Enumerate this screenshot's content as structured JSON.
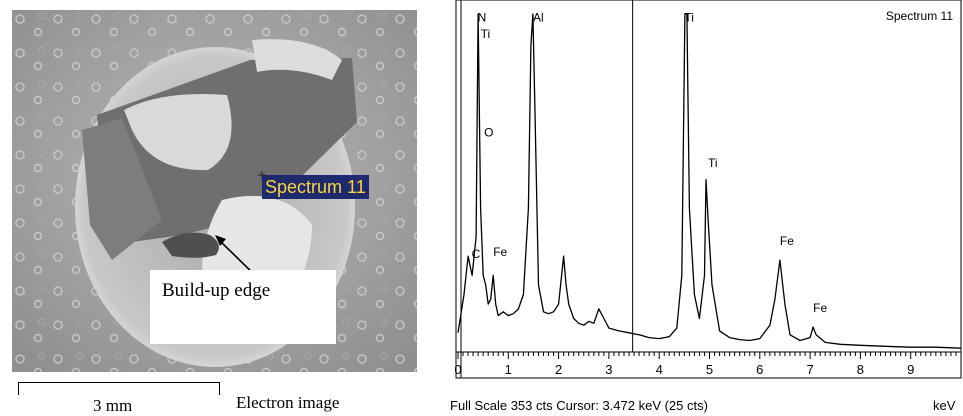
{
  "left_panel": {
    "spectrum_tag": "Spectrum 11",
    "annotation": "Build-up edge",
    "scale_bar_label": "3 mm",
    "image_label": "Electron image"
  },
  "spectrum_panel": {
    "title": "Spectrum 11",
    "footer_left": "Full Scale 353 cts  Cursor: 3.472 keV (25 cts)",
    "footer_right": "keV"
  },
  "chart_data": {
    "type": "line",
    "title": "Spectrum 11",
    "xlabel": "keV",
    "xlim": [
      0,
      10
    ],
    "ylim": [
      0,
      353
    ],
    "x_ticks": [
      0,
      1,
      2,
      3,
      4,
      5,
      6,
      7,
      8,
      9
    ],
    "cursor_kev": 3.472,
    "series": [
      {
        "x": [
          0.0,
          0.12,
          0.2,
          0.28,
          0.36,
          0.4,
          0.45,
          0.5,
          0.55,
          0.6,
          0.65,
          0.7,
          0.75,
          0.8,
          0.9,
          1.0,
          1.1,
          1.2,
          1.3,
          1.4,
          1.45,
          1.49,
          1.53,
          1.6,
          1.7,
          1.8,
          1.9,
          2.0,
          2.1,
          2.15,
          2.2,
          2.3,
          2.4,
          2.5,
          2.6,
          2.7,
          2.8,
          2.9,
          3.0,
          3.2,
          3.4,
          3.6,
          3.8,
          4.0,
          4.2,
          4.35,
          4.45,
          4.51,
          4.55,
          4.6,
          4.7,
          4.8,
          4.9,
          4.93,
          4.97,
          5.05,
          5.2,
          5.4,
          5.6,
          5.8,
          6.0,
          6.2,
          6.3,
          6.4,
          6.5,
          6.6,
          6.8,
          7.0,
          7.06,
          7.12,
          7.3,
          7.6,
          8.0,
          8.5,
          9.0,
          9.5,
          10.0
        ],
        "y": [
          20,
          60,
          100,
          80,
          120,
          353,
          150,
          80,
          70,
          50,
          55,
          80,
          50,
          38,
          42,
          38,
          40,
          45,
          60,
          150,
          320,
          353,
          250,
          70,
          42,
          40,
          42,
          50,
          100,
          70,
          50,
          35,
          30,
          28,
          32,
          30,
          45,
          35,
          25,
          22,
          20,
          18,
          15,
          14,
          16,
          25,
          80,
          353,
          353,
          150,
          60,
          35,
          80,
          180,
          140,
          70,
          22,
          15,
          13,
          12,
          14,
          28,
          55,
          96,
          50,
          18,
          12,
          15,
          26,
          18,
          10,
          8,
          7,
          6,
          5,
          5,
          4
        ]
      }
    ],
    "peak_labels": [
      {
        "label": "N",
        "x": 0.39,
        "y": 345
      },
      {
        "label": "Ti",
        "x": 0.45,
        "y": 328
      },
      {
        "label": "O",
        "x": 0.52,
        "y": 225
      },
      {
        "label": "C",
        "x": 0.27,
        "y": 98
      },
      {
        "label": "Fe",
        "x": 0.7,
        "y": 100
      },
      {
        "label": "Al",
        "x": 1.49,
        "y": 345
      },
      {
        "label": "Ti",
        "x": 4.5,
        "y": 345
      },
      {
        "label": "Ti",
        "x": 4.97,
        "y": 193
      },
      {
        "label": "Fe",
        "x": 6.4,
        "y": 112
      },
      {
        "label": "Fe",
        "x": 7.06,
        "y": 42
      }
    ]
  }
}
